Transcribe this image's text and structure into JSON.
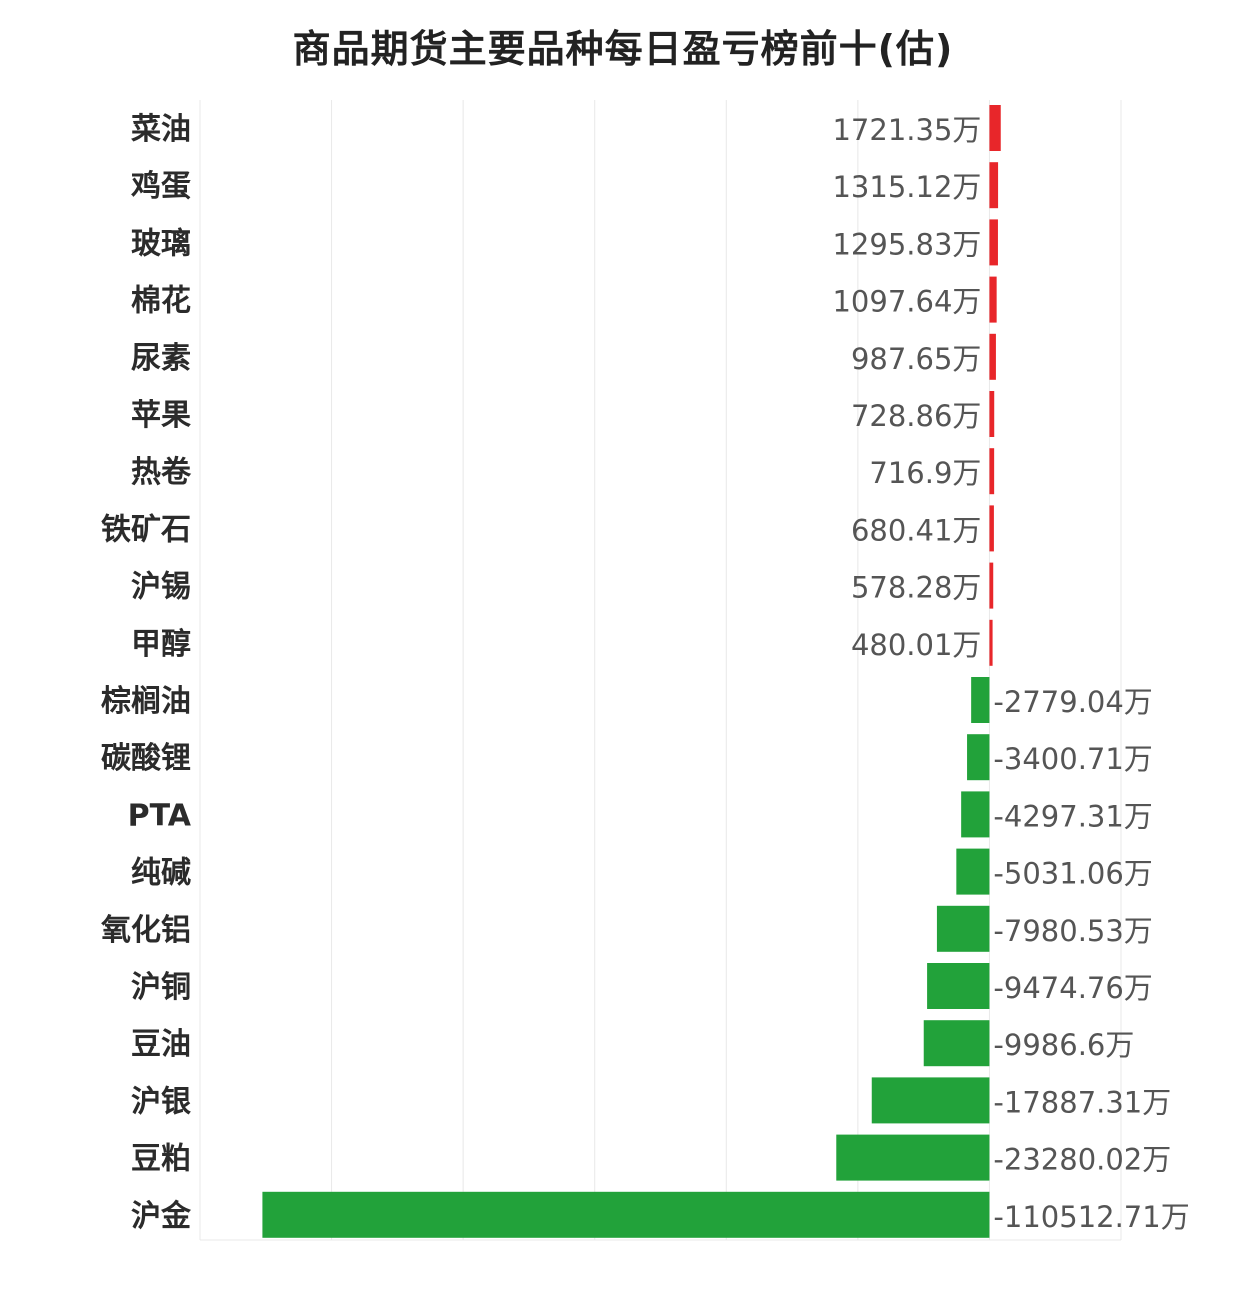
{
  "chart_data": {
    "type": "bar",
    "orientation": "horizontal",
    "title": "商品期货主要品种每日盈亏榜前十(估)",
    "unit_suffix": "万",
    "categories": [
      "菜油",
      "鸡蛋",
      "玻璃",
      "棉花",
      "尿素",
      "苹果",
      "热卷",
      "铁矿石",
      "沪锡",
      "甲醇",
      "棕榈油",
      "碳酸锂",
      "PTA",
      "纯碱",
      "氧化铝",
      "沪铜",
      "豆油",
      "沪银",
      "豆粕",
      "沪金"
    ],
    "values": [
      1721.35,
      1315.12,
      1295.83,
      1097.64,
      987.65,
      728.86,
      716.9,
      680.41,
      578.28,
      480.01,
      -2779.04,
      -3400.71,
      -4297.31,
      -5031.06,
      -7980.53,
      -9474.76,
      -9986.6,
      -17887.31,
      -23280.02,
      -110512.71
    ],
    "value_labels": [
      "1721.35万",
      "1315.12万",
      "1295.83万",
      "1097.64万",
      "987.65万",
      "728.86万",
      "716.9万",
      "680.41万",
      "578.28万",
      "480.01万",
      "-2779.04万",
      "-3400.71万",
      "-4297.31万",
      "-5031.06万",
      "-7980.53万",
      "-9474.76万",
      "-9986.6万",
      "-17887.31万",
      "-23280.02万",
      "-110512.71万"
    ],
    "colors": {
      "positive": "#e8262a",
      "negative": "#22a23a"
    },
    "xlim": [
      -120000,
      20000
    ],
    "grid": true
  }
}
